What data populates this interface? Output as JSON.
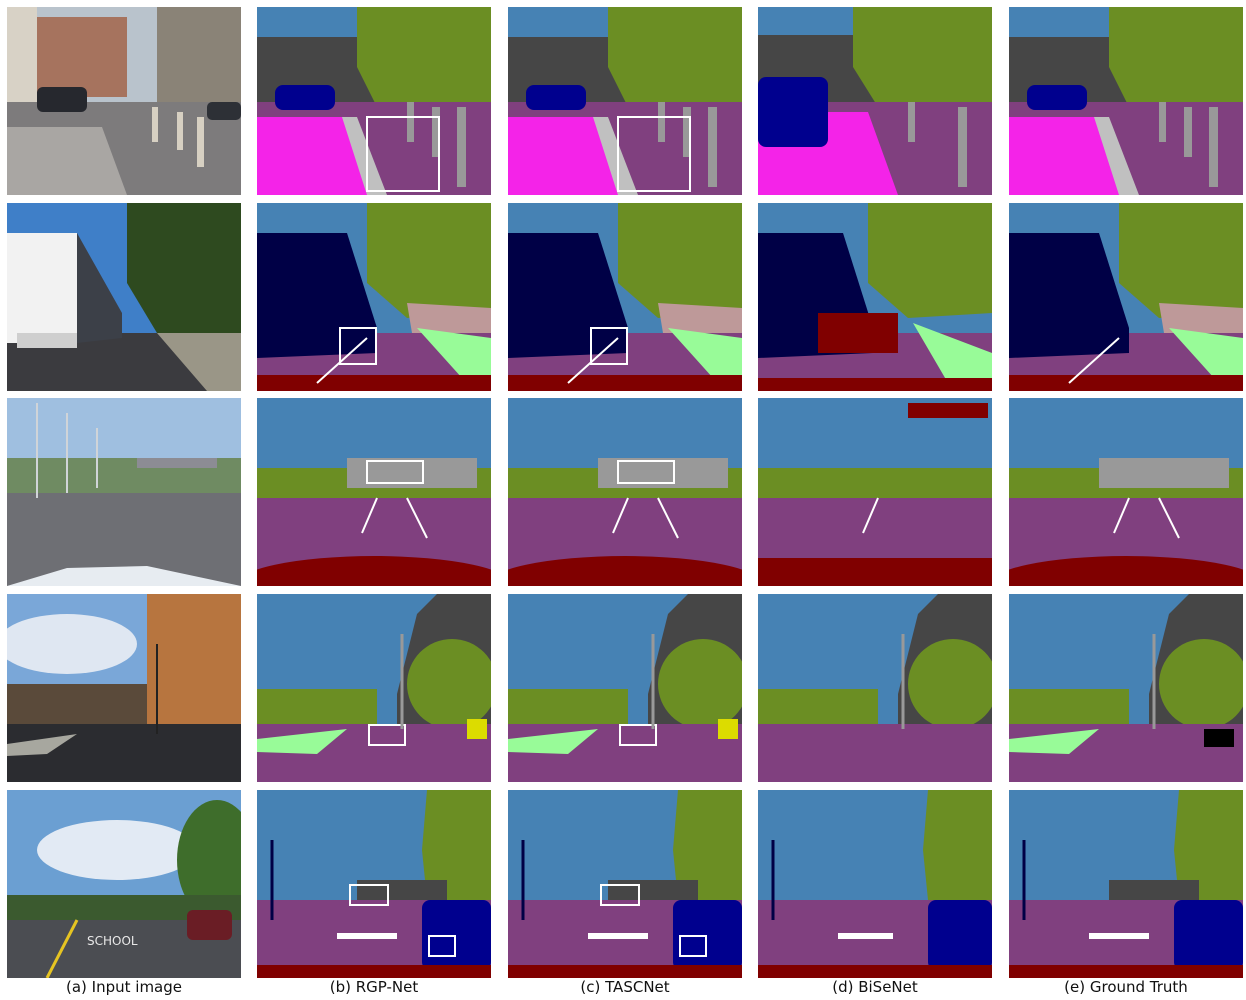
{
  "captions": {
    "col_a": "(a) Input image",
    "col_b": "(b) RGP-Net",
    "col_c": "(c) TASCNet",
    "col_d": "(d) BiSeNet",
    "col_e": "(e) Ground Truth"
  },
  "figure": {
    "rows": 5,
    "columns": [
      "input",
      "rgpnet",
      "tascnet",
      "bisenet",
      "ground-truth"
    ],
    "highlight_box_color": "#ffffff",
    "photo_sign_text": "SCHOOL"
  },
  "palette": {
    "sky": "#4682b4",
    "vegetation": "#6b8e23",
    "building": "#464646",
    "road": "#80407f",
    "sidewalk": "#f423e8",
    "terrain": "#98fb98",
    "car": "#00008e",
    "truck": "#000046",
    "pole": "#999999",
    "traffic_sign": "#dcdc00",
    "traffic_light": "#faaa1e",
    "fence": "#be9999",
    "ego_vehicle": "#800000",
    "lane_marking": "#ffffff",
    "person": "#dc143c"
  }
}
